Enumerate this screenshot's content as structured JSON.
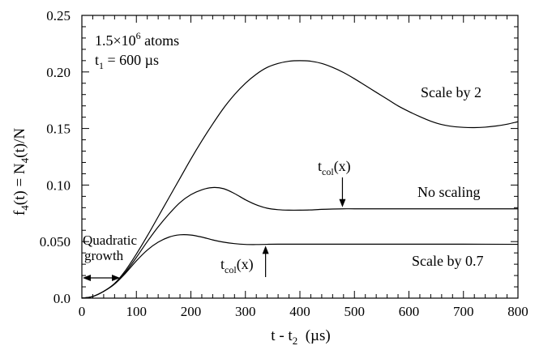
{
  "chart_data": {
    "type": "line",
    "title": "",
    "xlabel": {
      "base": "t - t",
      "sub": "2",
      "units": "  (µs)"
    },
    "ylabel": {
      "p1": "f",
      "s1": "4",
      "p2": "(t) = N",
      "s2": "4",
      "p3": "(t)/N"
    },
    "xlim": [
      0,
      800
    ],
    "ylim": [
      0,
      0.25
    ],
    "x_ticks": [
      0,
      100,
      200,
      300,
      400,
      500,
      600,
      700,
      800
    ],
    "x_tick_labels": [
      "0",
      "100",
      "200",
      "300",
      "400",
      "500",
      "600",
      "700",
      "800"
    ],
    "y_ticks": [
      0,
      0.05,
      0.1,
      0.15,
      0.2,
      0.25
    ],
    "y_tick_labels": [
      "0.0",
      "0.050",
      "0.10",
      "0.15",
      "0.20",
      "0.25"
    ],
    "grid": false,
    "series": [
      {
        "name": "Scale by 2",
        "x": [
          0,
          20,
          40,
          60,
          80,
          100,
          120,
          140,
          160,
          180,
          200,
          220,
          240,
          260,
          280,
          300,
          320,
          340,
          360,
          380,
          400,
          420,
          440,
          460,
          480,
          500,
          520,
          540,
          560,
          580,
          600,
          620,
          640,
          660,
          680,
          700,
          720,
          740,
          760,
          780,
          800
        ],
        "y": [
          0,
          0.0015,
          0.006,
          0.013,
          0.0245,
          0.039,
          0.055,
          0.072,
          0.089,
          0.106,
          0.123,
          0.139,
          0.154,
          0.168,
          0.18,
          0.19,
          0.198,
          0.204,
          0.2075,
          0.2095,
          0.21,
          0.2095,
          0.2075,
          0.204,
          0.1995,
          0.194,
          0.188,
          0.182,
          0.176,
          0.17,
          0.165,
          0.1605,
          0.1565,
          0.1535,
          0.1518,
          0.151,
          0.1508,
          0.1512,
          0.1522,
          0.1538,
          0.156
        ]
      },
      {
        "name": "No scaling",
        "x": [
          0,
          20,
          40,
          60,
          80,
          100,
          120,
          140,
          160,
          180,
          200,
          220,
          240,
          260,
          280,
          300,
          320,
          340,
          360,
          380,
          400,
          420,
          440,
          460,
          480,
          500,
          550,
          600,
          650,
          700,
          750,
          800
        ],
        "y": [
          0,
          0.0015,
          0.006,
          0.0125,
          0.023,
          0.036,
          0.05,
          0.063,
          0.0745,
          0.0845,
          0.0915,
          0.0958,
          0.0978,
          0.0968,
          0.0925,
          0.087,
          0.0825,
          0.0795,
          0.0782,
          0.0778,
          0.0778,
          0.078,
          0.0785,
          0.0788,
          0.079,
          0.079,
          0.079,
          0.079,
          0.079,
          0.079,
          0.079,
          0.079
        ]
      },
      {
        "name": "Scale by 0.7",
        "x": [
          0,
          20,
          40,
          60,
          80,
          100,
          120,
          140,
          160,
          180,
          200,
          220,
          240,
          260,
          280,
          300,
          320,
          340,
          360,
          400,
          500,
          600,
          700,
          800
        ],
        "y": [
          0,
          0.0015,
          0.006,
          0.0125,
          0.022,
          0.033,
          0.0425,
          0.0495,
          0.054,
          0.056,
          0.0558,
          0.054,
          0.0515,
          0.0495,
          0.0482,
          0.0475,
          0.0474,
          0.0476,
          0.0477,
          0.0477,
          0.0477,
          0.0477,
          0.0477,
          0.0476
        ]
      }
    ],
    "annotations": {
      "atoms": {
        "pre": "1.5×10",
        "sup": "6",
        "post": " atoms"
      },
      "t1": {
        "pre": "t",
        "sub": "1",
        "post": " = 600 µs"
      },
      "quadratic": [
        "Quadratic",
        "growth"
      ],
      "tcol_upper": {
        "pre": "t",
        "sub": "col",
        "post": "(x)"
      },
      "tcol_lower": {
        "pre": "t",
        "sub": "col",
        "post": "(x)"
      },
      "tcol_upper_x": 478,
      "tcol_upper_y": 0.079,
      "tcol_lower_x": 337,
      "tcol_lower_y": 0.0477,
      "quadratic_x_range": [
        0,
        70
      ]
    }
  }
}
